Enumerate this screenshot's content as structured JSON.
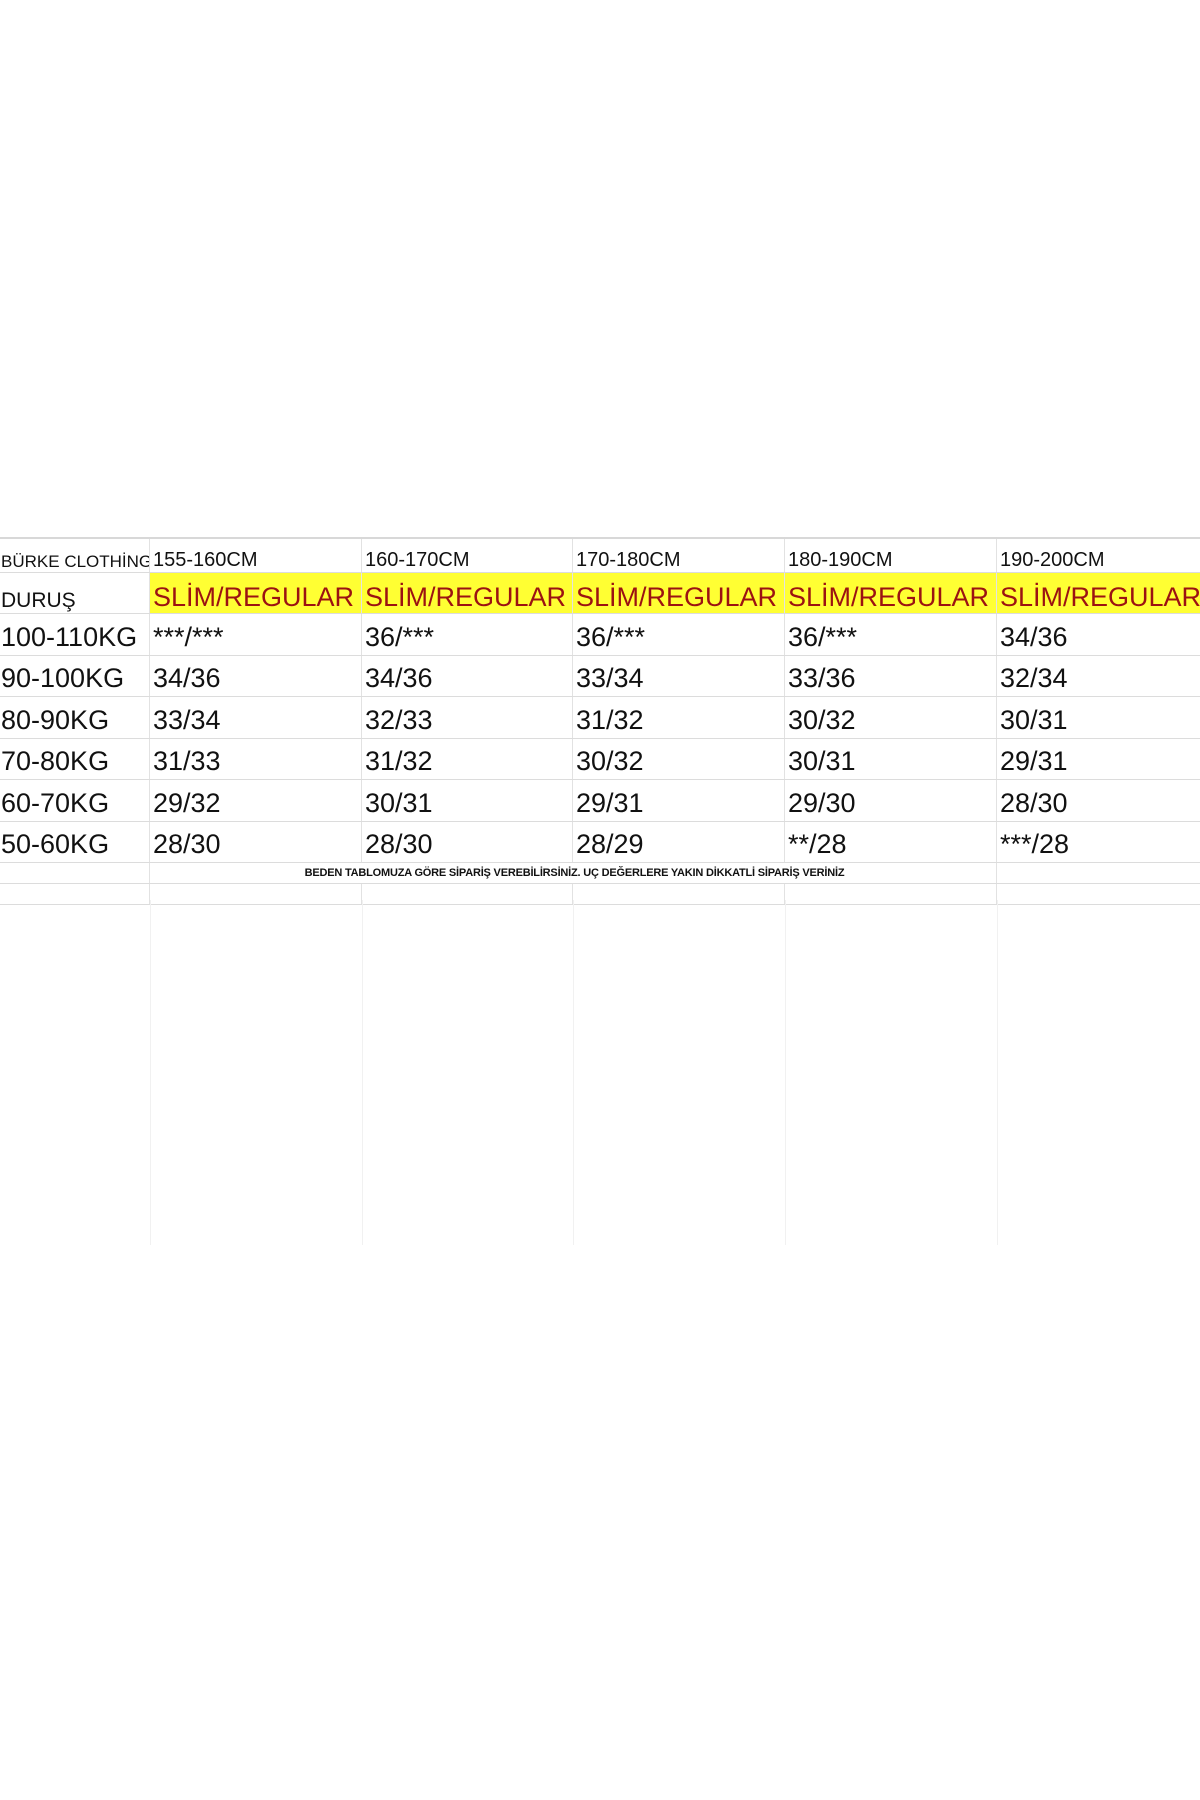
{
  "header": {
    "brand": "BÜRKE",
    "brand_suffix": "CLOTHİNG",
    "heights": [
      "155-160CM",
      "160-170CM",
      "170-180CM",
      "180-190CM",
      "190-200CM"
    ]
  },
  "fit_row": {
    "label": "DURUŞ",
    "values": [
      "SLİM/REGULAR",
      "SLİM/REGULAR",
      "SLİM/REGULAR",
      "SLİM/REGULAR",
      "SLİM/REGULAR"
    ]
  },
  "rows": [
    {
      "weight": "100-110KG",
      "sizes": [
        "***/***",
        "36/***",
        "36/***",
        "36/***",
        "34/36"
      ]
    },
    {
      "weight": "90-100KG",
      "sizes": [
        "34/36",
        "34/36",
        "33/34",
        "33/36",
        "32/34"
      ]
    },
    {
      "weight": "80-90KG",
      "sizes": [
        "33/34",
        "32/33",
        "31/32",
        "30/32",
        "30/31"
      ]
    },
    {
      "weight": "70-80KG",
      "sizes": [
        "31/33",
        "31/32",
        "30/32",
        "30/31",
        "29/31"
      ]
    },
    {
      "weight": "60-70KG",
      "sizes": [
        "29/32",
        "30/31",
        "29/31",
        "29/30",
        "28/30"
      ]
    },
    {
      "weight": "50-60KG",
      "sizes": [
        "28/30",
        "28/30",
        "28/29",
        "**/28",
        "***/28"
      ]
    }
  ],
  "note": "BEDEN TABLOMUZA GÖRE SİPARİŞ VEREBİLİRSİNİZ. UÇ DEĞERLERE YAKIN DİKKATLİ SİPARİŞ VERİNİZ",
  "colors": {
    "highlight": "#ffff33",
    "fit_text": "#9b1212"
  }
}
